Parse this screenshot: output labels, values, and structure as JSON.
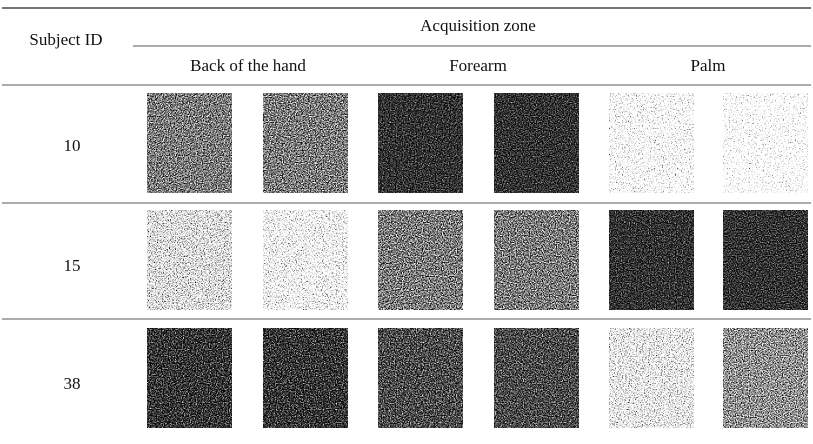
{
  "table": {
    "header": {
      "row_label": "Subject ID",
      "group": "Acquisition zone",
      "zones": [
        "Back of the hand",
        "Forearm",
        "Palm"
      ]
    },
    "rows": [
      {
        "subject_id": 10
      },
      {
        "subject_id": 15
      },
      {
        "subject_id": 38
      }
    ]
  }
}
